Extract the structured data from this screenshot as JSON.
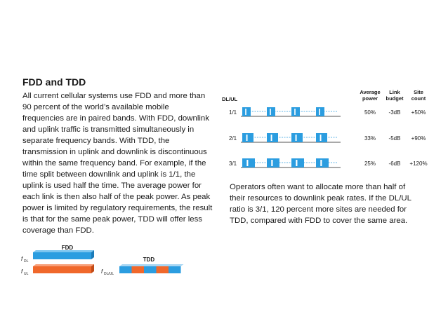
{
  "heading": "FDD and TDD",
  "paragraph_lines": [
    "All current cellular systems use FDD and more than",
    "90 percent of the world’s available mobile",
    "frequencies are in paired bands. With FDD, downlink",
    "and uplink traffic is transmitted simultaneously in",
    "separate frequency bands. With TDD, the",
    "transmission in uplink and downlink is discontinuous",
    "within the same frequency band. For example, if the",
    "time split between downlink and uplink is 1/1, the",
    "uplink is used half the time. The average power for",
    "each link is then also half of the peak power. As peak",
    "power is limited by regulatory requirements, the result",
    "is that for the same peak power, TDD will offer less",
    "coverage than FDD."
  ],
  "table": {
    "row_header": "DL/UL",
    "col_headers": [
      {
        "l1": "Average",
        "l2": "power"
      },
      {
        "l1": "Link",
        "l2": "budget"
      },
      {
        "l1": "Site",
        "l2": "count"
      }
    ],
    "rows": [
      {
        "ratio": "1/1",
        "power": "50%",
        "budget": "-3dB",
        "count": "+50%",
        "dl_fraction": 0.5
      },
      {
        "ratio": "2/1",
        "power": "33%",
        "budget": "-5dB",
        "count": "+90%",
        "dl_fraction": 0.667
      },
      {
        "ratio": "3/1",
        "power": "25%",
        "budget": "-6dB",
        "count": "+120%",
        "dl_fraction": 0.75
      }
    ]
  },
  "caption_lines": [
    "Operators often want to allocate more than half of",
    "their resources to downlink peak rates. If the DL/UL",
    "ratio is 3/1, 120 percent more sites are needed for",
    "TDD, compared with FDD to cover the same area."
  ],
  "fdd_diagram": {
    "title": "FDD",
    "dl_sym": "f",
    "dl_sub": "DL",
    "ul_sym": "f",
    "ul_sub": "UL"
  },
  "tdd_diagram": {
    "title": "TDD",
    "sym": "f",
    "sub": "DL/UL"
  },
  "colors": {
    "downlink": "#2b9de0",
    "uplink": "#f0682b",
    "text": "#1a1a1a"
  }
}
